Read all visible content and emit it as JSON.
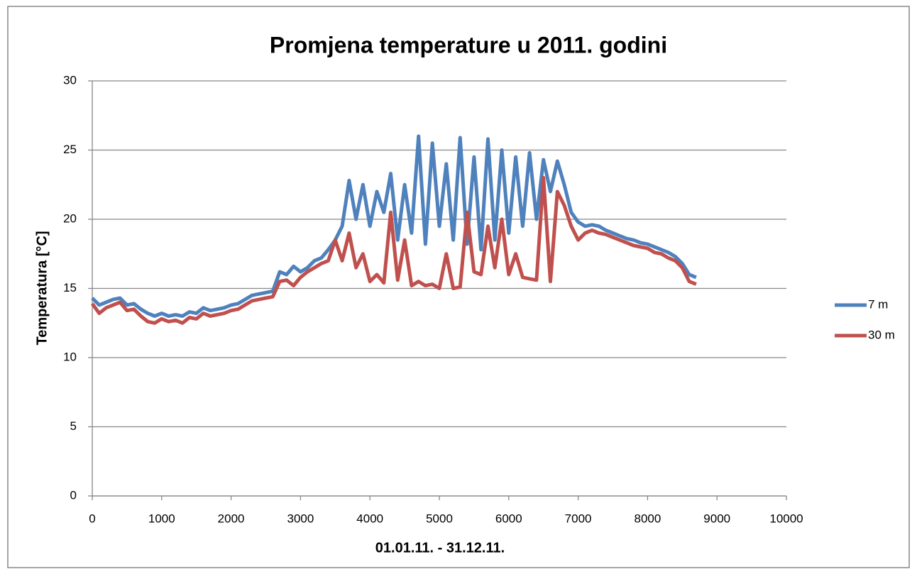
{
  "chart_data": {
    "type": "line",
    "title": "Promjena temperature u 2011. godini",
    "xlabel": "01.01.11. - 31.12.11.",
    "ylabel": "Temperatura [°C]",
    "x": [
      0,
      100,
      200,
      300,
      400,
      500,
      600,
      700,
      800,
      900,
      1000,
      1100,
      1200,
      1300,
      1400,
      1500,
      1600,
      1700,
      1800,
      1900,
      2000,
      2100,
      2200,
      2300,
      2400,
      2500,
      2600,
      2700,
      2800,
      2900,
      3000,
      3100,
      3200,
      3300,
      3400,
      3500,
      3600,
      3700,
      3800,
      3900,
      4000,
      4100,
      4200,
      4300,
      4400,
      4500,
      4600,
      4700,
      4800,
      4900,
      5000,
      5100,
      5200,
      5300,
      5400,
      5500,
      5600,
      5700,
      5800,
      5900,
      6000,
      6100,
      6200,
      6300,
      6400,
      6500,
      6600,
      6700,
      6800,
      6900,
      7000,
      7100,
      7200,
      7300,
      7400,
      7500,
      7600,
      7700,
      7800,
      7900,
      8000,
      8100,
      8200,
      8300,
      8400,
      8500,
      8600,
      8700
    ],
    "series": [
      {
        "name": "7 m",
        "color": "#4f81bd",
        "values": [
          14.3,
          13.8,
          14.0,
          14.2,
          14.3,
          13.8,
          13.9,
          13.5,
          13.2,
          13.0,
          13.2,
          13.0,
          13.1,
          13.0,
          13.3,
          13.2,
          13.6,
          13.4,
          13.5,
          13.6,
          13.8,
          13.9,
          14.2,
          14.5,
          14.6,
          14.7,
          14.8,
          16.2,
          16.0,
          16.6,
          16.2,
          16.5,
          17.0,
          17.2,
          17.8,
          18.5,
          19.5,
          22.8,
          20.0,
          22.5,
          19.5,
          22.0,
          20.5,
          23.3,
          18.5,
          22.5,
          19.0,
          26.0,
          18.2,
          25.5,
          19.5,
          24.0,
          18.5,
          25.9,
          18.2,
          24.5,
          17.8,
          25.8,
          18.5,
          25.0,
          19.0,
          24.5,
          19.5,
          24.8,
          20.0,
          24.3,
          22.0,
          24.2,
          22.5,
          20.5,
          19.8,
          19.5,
          19.6,
          19.5,
          19.2,
          19.0,
          18.8,
          18.6,
          18.5,
          18.3,
          18.2,
          18.0,
          17.8,
          17.6,
          17.3,
          16.8,
          16.0,
          15.8
        ]
      },
      {
        "name": "30 m",
        "color": "#c0504d",
        "values": [
          13.9,
          13.2,
          13.6,
          13.8,
          14.0,
          13.4,
          13.5,
          13.0,
          12.6,
          12.5,
          12.8,
          12.6,
          12.7,
          12.5,
          12.9,
          12.8,
          13.2,
          13.0,
          13.1,
          13.2,
          13.4,
          13.5,
          13.8,
          14.1,
          14.2,
          14.3,
          14.4,
          15.5,
          15.6,
          15.2,
          15.8,
          16.2,
          16.5,
          16.8,
          17.0,
          18.5,
          17.0,
          19.0,
          16.5,
          17.5,
          15.5,
          16.0,
          15.4,
          20.5,
          15.6,
          18.5,
          15.2,
          15.5,
          15.2,
          15.3,
          15.0,
          17.5,
          15.0,
          15.1,
          20.5,
          16.2,
          16.0,
          19.5,
          16.5,
          20.0,
          16.0,
          17.5,
          15.8,
          15.7,
          15.6,
          23.0,
          15.5,
          22.0,
          21.0,
          19.5,
          18.5,
          19.0,
          19.2,
          19.0,
          18.9,
          18.7,
          18.5,
          18.3,
          18.1,
          18.0,
          17.9,
          17.6,
          17.5,
          17.2,
          17.0,
          16.5,
          15.5,
          15.3
        ]
      }
    ],
    "xlim": [
      0,
      10000
    ],
    "xticks": [
      0,
      1000,
      2000,
      3000,
      4000,
      5000,
      6000,
      7000,
      8000,
      9000,
      10000
    ],
    "ylim": [
      0,
      30
    ],
    "yticks": [
      0,
      5,
      10,
      15,
      20,
      25,
      30
    ],
    "grid": true,
    "legend": "right"
  }
}
